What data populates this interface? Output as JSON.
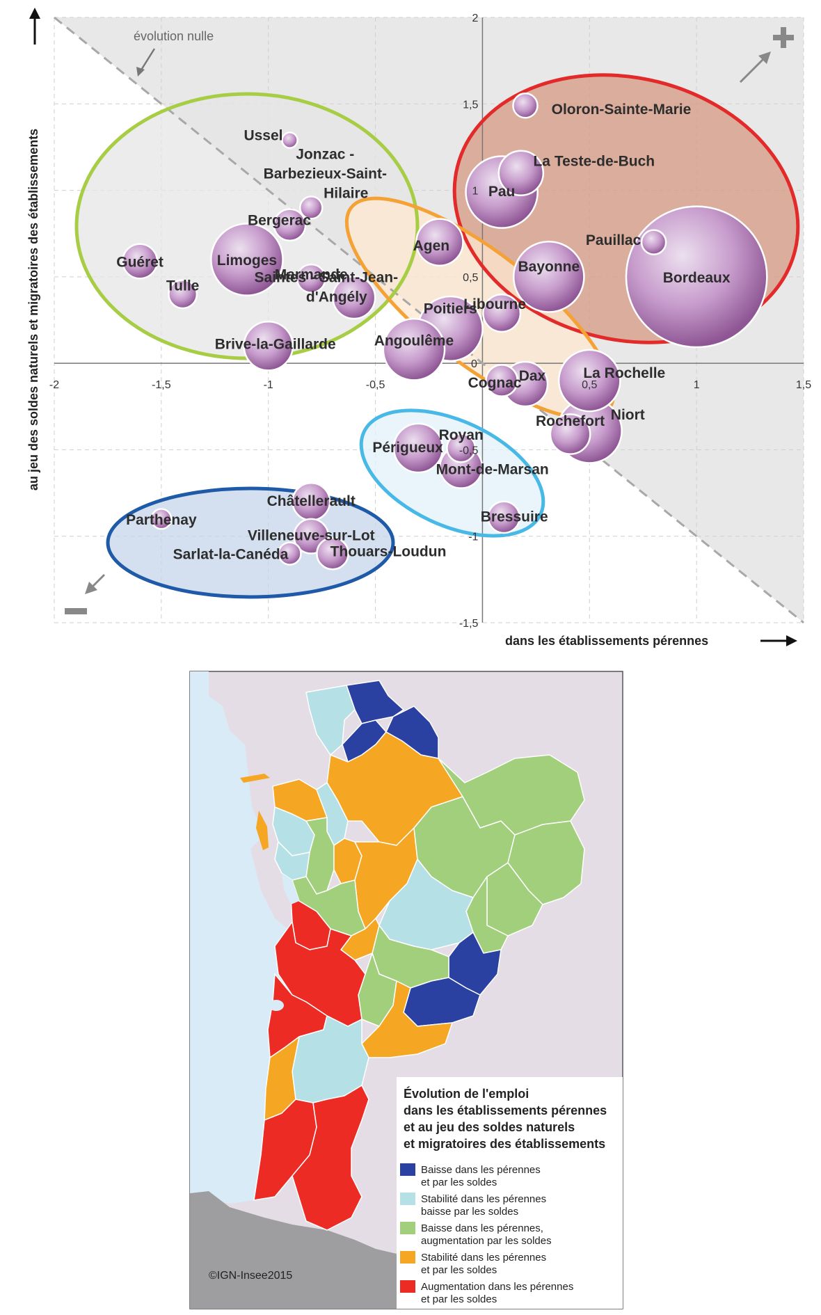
{
  "chart_data": {
    "type": "scatter",
    "x_axis": {
      "label": "dans les établissements pérennes",
      "range": [
        -2,
        1.5
      ],
      "ticks": [
        "-2",
        "-1,5",
        "-1",
        "-0,5",
        "0",
        "0,5",
        "1",
        "1,5"
      ],
      "tick_values": [
        -2,
        -1.5,
        -1,
        -0.5,
        0,
        0.5,
        1,
        1.5
      ]
    },
    "y_axis": {
      "label": "au jeu des soldes naturels et migratoires des établissements",
      "range": [
        -1.5,
        2
      ],
      "ticks": [
        "-1,5",
        "-1",
        "-0,5",
        "0",
        "0,5",
        "1",
        "1,5",
        "2"
      ],
      "tick_values": [
        -1.5,
        -1,
        -0.5,
        0,
        0.5,
        1,
        1.5,
        2
      ]
    },
    "reference_line": {
      "label": "évolution nulle",
      "slope": -1,
      "style": "dashed"
    },
    "corner_signs": {
      "top_right": "+",
      "bottom_left": "−"
    },
    "grid": true,
    "points": [
      {
        "name": "Oloron-Sainte-Marie",
        "x": 0.2,
        "y": 1.49,
        "size": 0.3
      },
      {
        "name": "La Teste-de-Buch",
        "x": 0.18,
        "y": 1.1,
        "size": 1.0
      },
      {
        "name": "Pau",
        "x": 0.09,
        "y": 0.99,
        "size": 2.6
      },
      {
        "name": "Pauillac",
        "x": 0.8,
        "y": 0.7,
        "size": 0.3
      },
      {
        "name": "Bayonne",
        "x": 0.31,
        "y": 0.5,
        "size": 2.5
      },
      {
        "name": "Bordeaux",
        "x": 1.0,
        "y": 0.5,
        "size": 10.0
      },
      {
        "name": "Libourne",
        "x": 0.09,
        "y": 0.29,
        "size": 0.7
      },
      {
        "name": "Agen",
        "x": -0.2,
        "y": 0.7,
        "size": 1.1
      },
      {
        "name": "Poitiers",
        "x": -0.15,
        "y": 0.2,
        "size": 2.1
      },
      {
        "name": "Angoulême",
        "x": -0.32,
        "y": 0.08,
        "size": 1.9
      },
      {
        "name": "Saintes - Saint-Jean-d'Angély",
        "x": -0.6,
        "y": 0.38,
        "size": 0.9
      },
      {
        "name": "Marmande",
        "x": -0.8,
        "y": 0.49,
        "size": 0.4
      },
      {
        "name": "Bergerac",
        "x": -0.9,
        "y": 0.8,
        "size": 0.5
      },
      {
        "name": "Jonzac - Barbezieux-Saint-Hilaire",
        "x": -0.8,
        "y": 0.9,
        "size": 0.25
      },
      {
        "name": "Ussel",
        "x": -0.9,
        "y": 1.29,
        "size": 0.12
      },
      {
        "name": "Limoges",
        "x": -1.1,
        "y": 0.6,
        "size": 2.6
      },
      {
        "name": "Guéret",
        "x": -1.6,
        "y": 0.59,
        "size": 0.6
      },
      {
        "name": "Tulle",
        "x": -1.4,
        "y": 0.4,
        "size": 0.4
      },
      {
        "name": "Brive-la-Gaillarde",
        "x": -1.0,
        "y": 0.1,
        "size": 1.2
      },
      {
        "name": "Dax",
        "x": 0.2,
        "y": -0.12,
        "size": 1.0
      },
      {
        "name": "Cognac",
        "x": 0.09,
        "y": -0.1,
        "size": 0.5
      },
      {
        "name": "La Rochelle",
        "x": 0.5,
        "y": -0.1,
        "size": 1.9
      },
      {
        "name": "Rochefort",
        "x": 0.41,
        "y": -0.41,
        "size": 0.8
      },
      {
        "name": "Niort",
        "x": 0.5,
        "y": -0.39,
        "size": 2.1
      },
      {
        "name": "Périgueux",
        "x": -0.3,
        "y": -0.49,
        "size": 1.2
      },
      {
        "name": "Royan",
        "x": -0.1,
        "y": -0.49,
        "size": 0.4
      },
      {
        "name": "Mont-de-Marsan",
        "x": -0.1,
        "y": -0.6,
        "size": 0.9
      },
      {
        "name": "Bressuire",
        "x": 0.1,
        "y": -0.89,
        "size": 0.5
      },
      {
        "name": "Châtellerault",
        "x": -0.8,
        "y": -0.8,
        "size": 0.7
      },
      {
        "name": "Villeneuve-sur-Lot",
        "x": -0.8,
        "y": -1.0,
        "size": 0.6
      },
      {
        "name": "Parthenay",
        "x": -1.5,
        "y": -0.9,
        "size": 0.2
      },
      {
        "name": "Sarlat-la-Canéda",
        "x": -0.9,
        "y": -1.1,
        "size": 0.25
      },
      {
        "name": "Thouars-Loudun",
        "x": -0.7,
        "y": -1.1,
        "size": 0.5
      }
    ],
    "groups": [
      {
        "category": "Augmentation dans les pérennes et par les soldes",
        "color": "#e32a2a",
        "fill": "#d79a83"
      },
      {
        "category": "Baisse dans les pérennes, augmentation par les soldes",
        "color": "#a7cd45",
        "fill": "#e6e6e6"
      },
      {
        "category": "Stabilité dans les pérennes et par les soldes",
        "color": "#f4a236",
        "fill": "#fde8cf"
      },
      {
        "category": "Stabilité dans les pérennes baisse par les soldes",
        "color": "#48b9e6",
        "fill": "#e1f1fa"
      },
      {
        "category": "Baisse dans les pérennes et par les soldes",
        "color": "#1f5aa8",
        "fill": "#c5d5ea"
      }
    ]
  },
  "map": {
    "legend_title_lines": [
      "Évolution de l'emploi",
      "dans les établissements pérennes",
      "et au jeu des soldes naturels",
      "et migratoires des établissements"
    ],
    "legend_items": [
      {
        "line1": "Baisse dans les pérennes",
        "line2": "et par les soldes",
        "color": "#2b41a2"
      },
      {
        "line1": "Stabilité dans les pérennes",
        "line2": "baisse par les soldes",
        "color": "#b5e0e5"
      },
      {
        "line1": "Baisse dans les pérennes,",
        "line2": "augmentation par les soldes",
        "color": "#a2cf7c"
      },
      {
        "line1": "Stabilité dans les pérennes",
        "line2": "et par les soldes",
        "color": "#f5a623"
      },
      {
        "line1": "Augmentation dans les pérennes",
        "line2": "et par les soldes",
        "color": "#ec2b24"
      }
    ],
    "credit": "©IGN-Insee2015",
    "colors": {
      "sea": "#d9ebf6",
      "land_outside": "#e4dde5",
      "spain": "#9e9ea0"
    }
  }
}
